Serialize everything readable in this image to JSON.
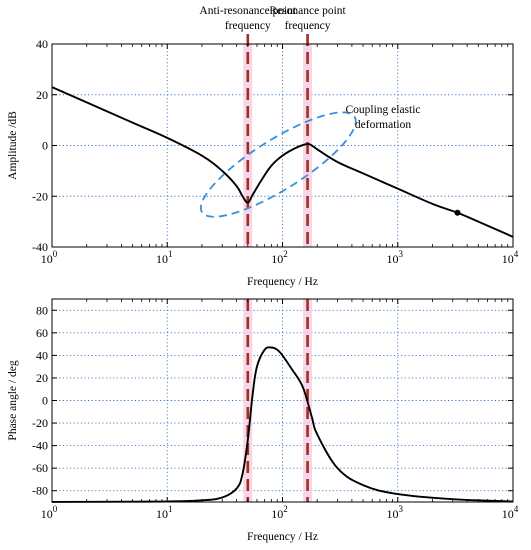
{
  "chart_data": [
    {
      "type": "line",
      "xscale": "log",
      "xlim": [
        1,
        10000
      ],
      "ylim": [
        -40,
        40
      ],
      "xlabel": "Frequency / Hz",
      "ylabel": "Amplitude /dB",
      "xticks": [
        "10^0",
        "10^1",
        "10^2",
        "10^3",
        "10^4"
      ],
      "xtick_labels": [
        {
          "base": "10",
          "exp": "0"
        },
        {
          "base": "10",
          "exp": "1"
        },
        {
          "base": "10",
          "exp": "2"
        },
        {
          "base": "10",
          "exp": "3"
        },
        {
          "base": "10",
          "exp": "4"
        }
      ],
      "yticks": [
        -40,
        -20,
        0,
        20,
        40
      ],
      "grid": true,
      "series": [
        {
          "x": [
            1,
            2,
            5,
            10,
            20,
            30,
            40,
            45,
            50,
            55,
            65,
            80,
            100,
            130,
            160,
            175,
            200,
            300,
            500,
            1000,
            2000,
            3300,
            5000,
            10000
          ],
          "y": [
            23,
            17,
            9,
            3,
            -4,
            -10,
            -16,
            -20,
            -22.5,
            -19.5,
            -14,
            -8,
            -4,
            -1,
            0.5,
            0.3,
            -1.5,
            -6.5,
            -11,
            -17,
            -23,
            -26.5,
            -30,
            -36
          ]
        }
      ],
      "marker_point": {
        "x": 3300,
        "y": -26.5
      },
      "vertical_lines": [
        50,
        165
      ],
      "annotations": [
        {
          "text_lines": [
            "Anti-resonance point",
            "frequency"
          ],
          "x": 50
        },
        {
          "text_lines": [
            "Resonance point",
            "frequency"
          ],
          "x": 165
        },
        {
          "text_lines": [
            "Coupling elastic",
            "deformation"
          ]
        }
      ],
      "ellipse": {
        "x_center": 92,
        "y_center": -7.5
      }
    },
    {
      "type": "line",
      "xscale": "log",
      "xlim": [
        1,
        10000
      ],
      "ylim": [
        -90,
        90
      ],
      "xlabel": "Frequency / Hz",
      "ylabel": "Phase angle / deg",
      "xticks": [
        "10^0",
        "10^1",
        "10^2",
        "10^3",
        "10^4"
      ],
      "xtick_labels": [
        {
          "base": "10",
          "exp": "0"
        },
        {
          "base": "10",
          "exp": "1"
        },
        {
          "base": "10",
          "exp": "2"
        },
        {
          "base": "10",
          "exp": "3"
        },
        {
          "base": "10",
          "exp": "4"
        }
      ],
      "yticks": [
        -80,
        -60,
        -40,
        -20,
        0,
        20,
        40,
        60,
        80
      ],
      "grid": true,
      "series": [
        {
          "x": [
            1,
            5,
            10,
            20,
            30,
            40,
            45,
            50,
            55,
            60,
            70,
            80,
            90,
            100,
            120,
            150,
            180,
            200,
            300,
            500,
            1000,
            3000,
            10000
          ],
          "y": [
            -89.9,
            -89.7,
            -89.5,
            -88.5,
            -86,
            -78,
            -65,
            -35,
            5,
            30,
            45,
            47,
            45,
            40,
            28,
            12,
            -15,
            -30,
            -60,
            -75,
            -83,
            -87.5,
            -89.5
          ]
        }
      ],
      "vertical_lines": [
        50,
        165
      ]
    }
  ]
}
